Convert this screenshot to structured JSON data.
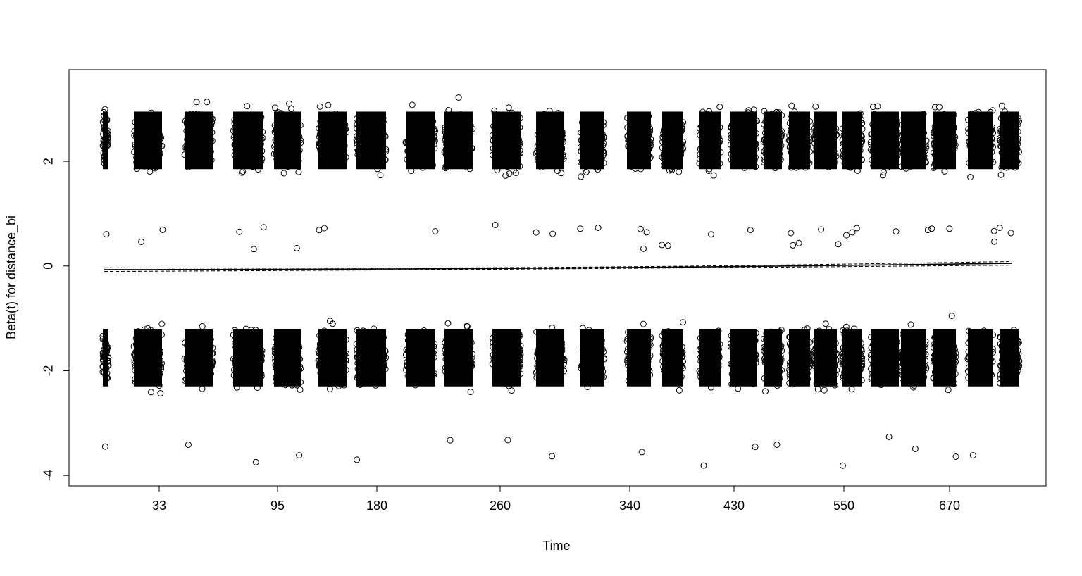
{
  "chart_data": {
    "type": "scatter",
    "title": "",
    "xlabel": "Time",
    "ylabel": "Beta(t) for distance_bi",
    "x_tick_labels": [
      "33",
      "95",
      "180",
      "260",
      "340",
      "430",
      "550",
      "670"
    ],
    "y_ticks": [
      -4,
      -2,
      0,
      2
    ],
    "ylim": [
      -4.2,
      3.75
    ],
    "grid": false,
    "legend": "none",
    "point_marker": "open circle",
    "band_count": 30,
    "cluster_upper": {
      "center": 2.4,
      "spread_min": 1.55,
      "spread_max": 3.45
    },
    "cluster_lower": {
      "center": -1.75,
      "spread_min": -2.75,
      "spread_max": -0.8
    },
    "outliers_mid": [
      0.75,
      0.6,
      0.45,
      0.35,
      0.7,
      0.65
    ],
    "outliers_low": [
      -3.45,
      -3.3,
      -3.6,
      -3.85,
      -3.6,
      -3.7
    ],
    "fit_line": {
      "start": -0.07,
      "end": 0.05,
      "style": "solid with dashed confidence bands"
    }
  }
}
